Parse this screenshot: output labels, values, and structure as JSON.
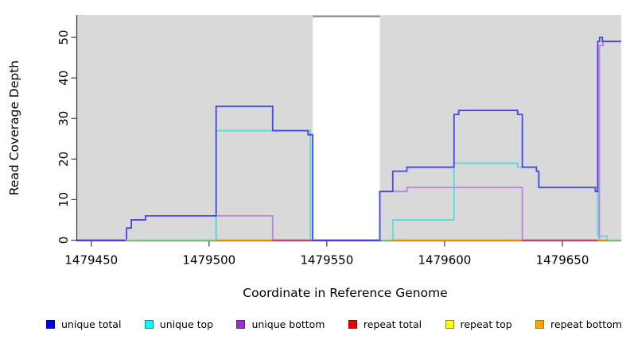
{
  "chart_data": {
    "type": "line",
    "subtype": "step-coverage",
    "title": "",
    "xlabel": "Coordinate in Reference Genome",
    "ylabel": "Read Coverage Depth",
    "xlim": [
      1479444,
      1479675
    ],
    "ylim": [
      0,
      55.5
    ],
    "x_ticks": [
      1479450,
      1479500,
      1479550,
      1479600,
      1479650
    ],
    "y_ticks": [
      0,
      10,
      20,
      30,
      40,
      50
    ],
    "grid": false,
    "legend_position": "bottom",
    "plot_bg_color": "#d9d9d9",
    "axis_color": "#3c3c3c",
    "text_color": "#000000",
    "gap_region": {
      "x_start": 1479544,
      "x_end": 1479572.5,
      "fill": "#ffffff",
      "top_border_color": "#8c8c8c"
    },
    "series": [
      {
        "name": "repeat top",
        "color": "#ffff00",
        "points": [
          [
            1479444,
            0
          ]
        ]
      },
      {
        "name": "repeat bottom",
        "color": "#ffa500",
        "points": [
          [
            1479444,
            0
          ]
        ]
      },
      {
        "name": "repeat total",
        "color": "#e0506e",
        "points": [
          [
            1479444,
            0
          ]
        ]
      },
      {
        "name": "unique bottom",
        "color": "#bf7fe0",
        "points": [
          [
            1479444,
            0
          ],
          [
            1479503,
            6
          ],
          [
            1479527,
            0
          ],
          [
            1479572.5,
            12
          ],
          [
            1479584,
            13
          ],
          [
            1479633,
            0
          ],
          [
            1479665.7,
            48
          ],
          [
            1479667.3,
            49
          ]
        ]
      },
      {
        "name": "unique top",
        "color": "#55ddd8",
        "points": [
          [
            1479444,
            0
          ],
          [
            1479503,
            27
          ],
          [
            1479543,
            0
          ],
          [
            1479578,
            5
          ],
          [
            1479604,
            19
          ],
          [
            1479631,
            18
          ],
          [
            1479639,
            17
          ],
          [
            1479640,
            13
          ],
          [
            1479665,
            1
          ],
          [
            1479669,
            0
          ]
        ]
      },
      {
        "name": "unique total",
        "color": "#4646e8",
        "points": [
          [
            1479444,
            0
          ],
          [
            1479465,
            3
          ],
          [
            1479467,
            5
          ],
          [
            1479473,
            6
          ],
          [
            1479503,
            33
          ],
          [
            1479527,
            27
          ],
          [
            1479542,
            26
          ],
          [
            1479544,
            0
          ],
          [
            1479572.5,
            12
          ],
          [
            1479578,
            17
          ],
          [
            1479584,
            18
          ],
          [
            1479604,
            31
          ],
          [
            1479606,
            32
          ],
          [
            1479631,
            31
          ],
          [
            1479633,
            18
          ],
          [
            1479639,
            17
          ],
          [
            1479640,
            13
          ],
          [
            1479664,
            12
          ],
          [
            1479665,
            49
          ],
          [
            1479665.8,
            50
          ],
          [
            1479667,
            49
          ]
        ]
      }
    ],
    "baseline_overlays": [
      {
        "x_start": 1479464.6,
        "x_end": 1479503,
        "color": "#8be08b"
      },
      {
        "x_start": 1479503,
        "x_end": 1479527,
        "color": "#ffa500"
      },
      {
        "x_start": 1479527,
        "x_end": 1479544,
        "color": "#d24a78"
      },
      {
        "x_start": 1479573,
        "x_end": 1479578,
        "color": "#8be08b"
      },
      {
        "x_start": 1479578,
        "x_end": 1479633,
        "color": "#ffa500"
      },
      {
        "x_start": 1479633,
        "x_end": 1479665,
        "color": "#d24a78"
      },
      {
        "x_start": 1479665,
        "x_end": 1479669,
        "color": "#ffa500"
      },
      {
        "x_start": 1479669,
        "x_end": 1479675,
        "color": "#8be08b"
      }
    ],
    "legend": {
      "items": [
        {
          "label": "unique total",
          "fill": "#0000ee",
          "border": "#000090"
        },
        {
          "label": "unique top",
          "fill": "#00ffff",
          "border": "#008b8b"
        },
        {
          "label": "unique bottom",
          "fill": "#9932cc",
          "border": "#5a1e96"
        },
        {
          "label": "repeat total",
          "fill": "#ee0000",
          "border": "#900000"
        },
        {
          "label": "repeat top",
          "fill": "#ffff00",
          "border": "#8b8b00"
        },
        {
          "label": "repeat bottom",
          "fill": "#ffa500",
          "border": "#b36b00"
        }
      ]
    }
  }
}
